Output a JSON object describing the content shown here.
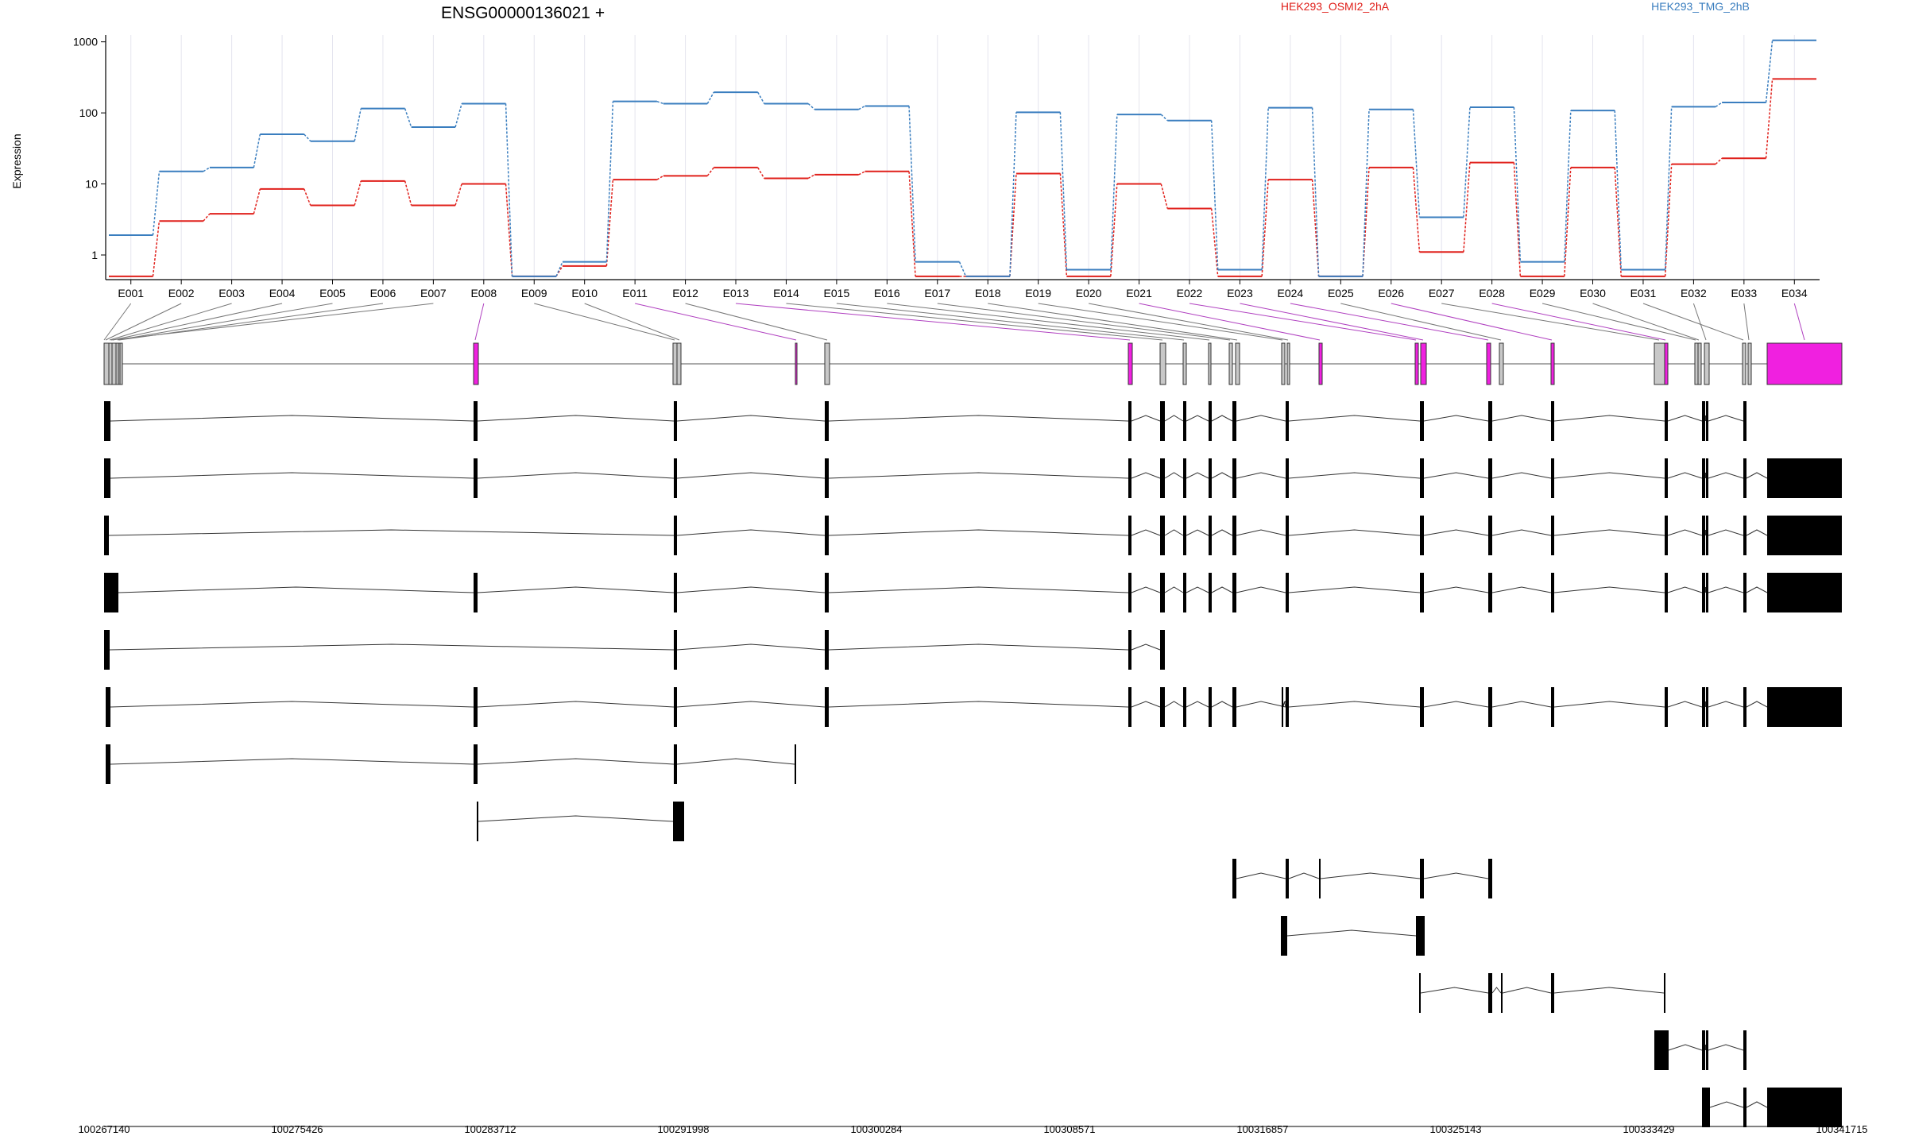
{
  "chart_data": {
    "type": "line",
    "title": "ENSG00000136021 +",
    "ylabel": "Expression",
    "y_scale": "log",
    "ylim": [
      0.45,
      1250
    ],
    "y_ticks": [
      1,
      10,
      100,
      1000
    ],
    "y_tick_labels": [
      "1",
      "10",
      "100",
      "1000"
    ],
    "grid": "vertical",
    "legend_position": "top",
    "categories": [
      "E001",
      "E002",
      "E003",
      "E004",
      "E005",
      "E006",
      "E007",
      "E008",
      "E009",
      "E010",
      "E011",
      "E012",
      "E013",
      "E014",
      "E015",
      "E016",
      "E017",
      "E018",
      "E019",
      "E020",
      "E021",
      "E022",
      "E023",
      "E024",
      "E025",
      "E026",
      "E027",
      "E028",
      "E029",
      "E030",
      "E031",
      "E032",
      "E033",
      "E034"
    ],
    "series": [
      {
        "name": "HEK293_OSMI2_2hA",
        "color": "#e0201b",
        "values": [
          0.5,
          3,
          3.8,
          8.5,
          5,
          11,
          5,
          10,
          0.5,
          0.7,
          11.5,
          13,
          17,
          12,
          13.5,
          15,
          0.5,
          0.5,
          14,
          0.5,
          10,
          4.5,
          0.5,
          11.5,
          0.5,
          17,
          1.1,
          20,
          0.5,
          17,
          0.5,
          19,
          23,
          300
        ]
      },
      {
        "name": "HEK293_TMG_2hB",
        "color": "#3a7ebf",
        "values": [
          1.9,
          15,
          17,
          50,
          40,
          115,
          63,
          135,
          0.5,
          0.8,
          145,
          135,
          195,
          135,
          112,
          125,
          0.8,
          0.5,
          102,
          0.62,
          95,
          78,
          0.62,
          118,
          0.5,
          112,
          3.4,
          120,
          0.8,
          108,
          0.62,
          122,
          140,
          1050
        ]
      }
    ],
    "genomic_ticks": [
      "100267140",
      "100275426",
      "100283712",
      "100291998",
      "100300284",
      "100308571",
      "100316857",
      "100325143",
      "100333429",
      "100341715"
    ],
    "exon_highlight_color": "#f020e0",
    "highlighted_exons": [
      "E008",
      "E011",
      "E013",
      "E021",
      "E022",
      "E023",
      "E024",
      "E026",
      "E028",
      "E034"
    ]
  }
}
